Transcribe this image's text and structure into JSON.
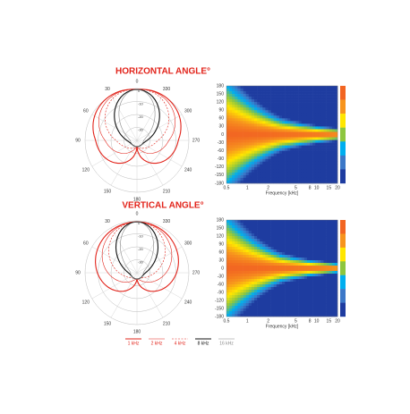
{
  "sections": [
    {
      "title": "HORIZONTAL ANGLE°",
      "polar": {
        "angle_labels": [
          "0",
          "30",
          "60",
          "90",
          "120",
          "150",
          "180",
          "210",
          "240",
          "270",
          "300",
          "330"
        ],
        "level_labels": [
          "0",
          "-10",
          "-20",
          "-30"
        ]
      },
      "heatmap": {
        "y_labels": [
          "180",
          "150",
          "120",
          "90",
          "60",
          "30",
          "0",
          "-30",
          "-60",
          "-90",
          "-120",
          "-150",
          "-180"
        ],
        "x_labels": [
          "0.5",
          "1",
          "2",
          "5",
          "8",
          "10",
          "15",
          "20"
        ],
        "x_axis_label": "Frequency [kHz]"
      }
    },
    {
      "title": "VERTICAL ANGLE°",
      "polar": {
        "angle_labels": [
          "0",
          "30",
          "60",
          "90",
          "120",
          "150",
          "180",
          "210",
          "240",
          "270",
          "300",
          "330"
        ],
        "level_labels": [
          "0",
          "-10",
          "-20",
          "-30"
        ]
      },
      "heatmap": {
        "y_labels": [
          "180",
          "150",
          "120",
          "90",
          "60",
          "30",
          "0",
          "-30",
          "-60",
          "-90",
          "-120",
          "-150",
          "-180"
        ],
        "x_labels": [
          "0.5",
          "1",
          "2",
          "5",
          "8",
          "10",
          "15",
          "20"
        ],
        "x_axis_label": "Frequency [kHz]"
      }
    }
  ],
  "legend": [
    {
      "label": "1 kHz",
      "color": "#e2231a"
    },
    {
      "label": "2 kHz",
      "color": "#e2231a"
    },
    {
      "label": "4 kHz",
      "color": "#e2231a"
    },
    {
      "label": "8 kHz",
      "color": "#111111"
    },
    {
      "label": "16 kHz",
      "color": "#888888"
    }
  ]
}
